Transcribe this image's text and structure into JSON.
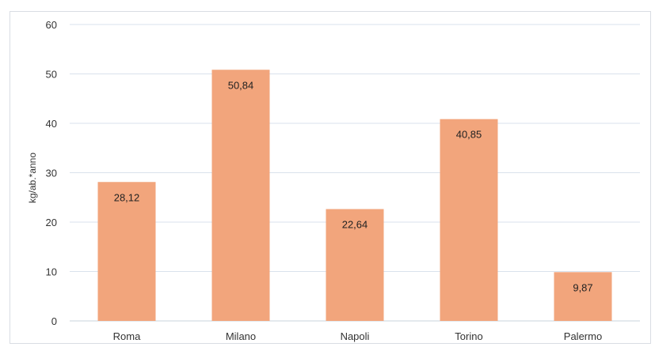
{
  "chart_data": {
    "type": "bar",
    "categories": [
      "Roma",
      "Milano",
      "Napoli",
      "Torino",
      "Palermo"
    ],
    "values": [
      28.12,
      50.84,
      22.64,
      40.85,
      9.87
    ],
    "data_labels": [
      "28,12",
      "50,84",
      "22,64",
      "40,85",
      "9,87"
    ],
    "title": "",
    "xlabel": "",
    "ylabel": "kg/ab.*anno",
    "ylim": [
      0,
      60
    ],
    "yticks": [
      0,
      10,
      20,
      30,
      40,
      50,
      60
    ],
    "grid": true,
    "legend": "none",
    "bar_color": "#f2a57c",
    "grid_color": "#d9e2ec"
  }
}
